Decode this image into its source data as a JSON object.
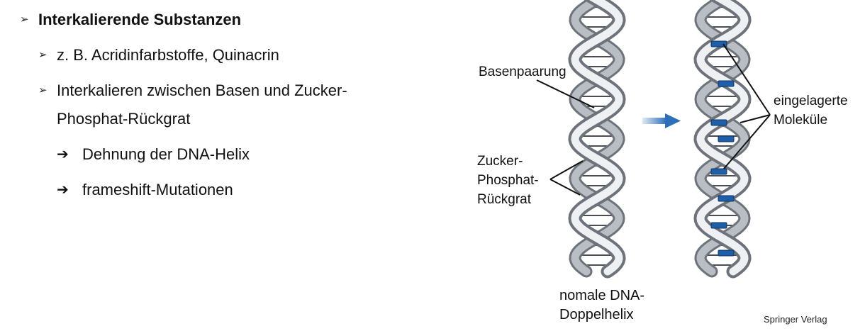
{
  "bullets": {
    "heading": "Interkalierende Substanzen",
    "sub1": "z. B. Acridinfarbstoffe, Quinacrin",
    "sub2_line1": "Interkalieren zwischen Basen und Zucker-",
    "sub2_line2": "Phosphat-Rückgrat",
    "arrow1": "Dehnung der DNA-Helix",
    "arrow2": "frameshift-Mutationen"
  },
  "figure": {
    "label_base_pair": "Basenpaarung",
    "label_backbone_1": "Zucker-",
    "label_backbone_2": "Phosphat-",
    "label_backbone_3": "Rückgrat",
    "label_intercalated_1": "eingelagerte",
    "label_intercalated_2": "Moleküle",
    "caption_1": "nomale DNA-",
    "caption_2": "Doppelhelix"
  },
  "credit": "Springer Verlag",
  "colors": {
    "helix_light": "#eef0f3",
    "helix_mid": "#b9bdc4",
    "helix_dark": "#6e737b",
    "intercalator": "#1f5fa8",
    "arrow": "#2d6fb8"
  }
}
